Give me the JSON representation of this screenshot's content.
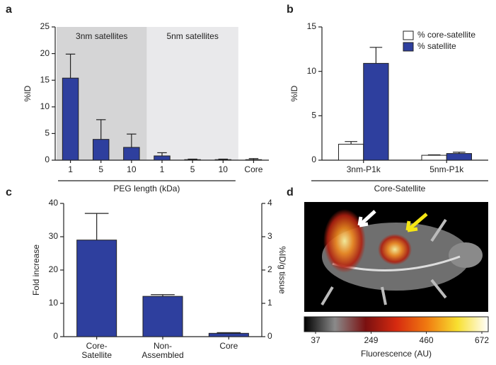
{
  "chart_data": [
    {
      "type": "bar",
      "panel_label": "a",
      "categories": [
        "1",
        "5",
        "10",
        "1",
        "5",
        "10",
        "Core"
      ],
      "values": [
        15.4,
        3.9,
        2.4,
        0.8,
        0.1,
        0.1,
        0.1
      ],
      "errors": [
        4.5,
        3.7,
        2.5,
        0.6,
        0.1,
        0.1,
        0.2
      ],
      "color": "#2e3f9e",
      "ylim": [
        0,
        25
      ],
      "yticks": [
        0,
        5,
        10,
        15,
        20,
        25
      ],
      "ylabel": "%ID",
      "xlabel": "PEG length (kDa)",
      "regions": [
        {
          "label": "3nm satellites",
          "color": "#d5d5d6",
          "from": 0,
          "to": 2
        },
        {
          "label": "5nm satellites",
          "color": "#e9e9eb",
          "from": 3,
          "to": 5
        }
      ]
    },
    {
      "type": "bar",
      "panel_label": "b",
      "categories": [
        "3nm-P1k",
        "5nm-P1k"
      ],
      "series": [
        {
          "name": "% core-satellite",
          "color": "#ffffff",
          "values": [
            1.8,
            0.55
          ],
          "errors": [
            0.3,
            0.05
          ]
        },
        {
          "name": "% satellite",
          "color": "#2e3f9e",
          "values": [
            10.9,
            0.75
          ],
          "errors": [
            1.8,
            0.15
          ]
        }
      ],
      "ylim": [
        0,
        15
      ],
      "yticks": [
        0,
        5,
        10,
        15
      ],
      "ylabel": "%ID",
      "xlabel": "Core-Satellite",
      "legend": "upper right"
    },
    {
      "type": "bar",
      "panel_label": "c",
      "categories": [
        [
          "Core-",
          "Satellite"
        ],
        [
          "Non-",
          "Assembled"
        ],
        [
          "Core"
        ]
      ],
      "values": [
        29,
        12.1,
        1
      ],
      "errors": [
        8,
        0.5,
        0.2
      ],
      "color": "#2e3f9e",
      "ylim": [
        0,
        40
      ],
      "yticks": [
        0,
        10,
        20,
        30,
        40
      ],
      "ylabel": "Fold increase",
      "y2lim": [
        0,
        4
      ],
      "y2ticks": [
        0,
        1,
        2,
        3,
        4
      ],
      "y2label": "%ID/g tissue"
    },
    {
      "type": "image",
      "panel_label": "d",
      "colorbar_lim": [
        37,
        672
      ],
      "colorbar_ticks": [
        37,
        249,
        460,
        672
      ],
      "colorbar_label": "Fluorescence (AU)",
      "colormap": [
        "#000000",
        "#8a8a8a",
        "#7a1010",
        "#d62a10",
        "#f07a10",
        "#f8e030",
        "#ffffff"
      ]
    }
  ]
}
